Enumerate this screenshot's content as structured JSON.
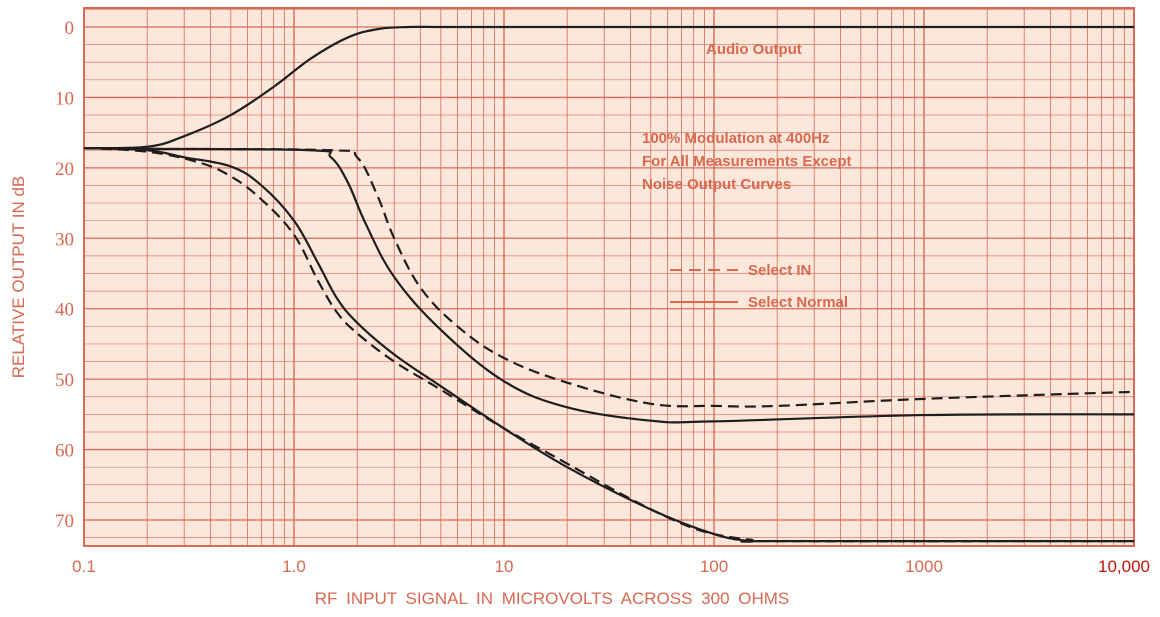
{
  "chart_data": {
    "type": "line",
    "x_scale": "log",
    "xlim": [
      0.1,
      10000
    ],
    "ylim": [
      0,
      73
    ],
    "y_inverted": true,
    "grid": true,
    "x_ticks": [
      {
        "value": 0.1,
        "label": "0.1"
      },
      {
        "value": 1,
        "label": "1.0"
      },
      {
        "value": 10,
        "label": "10"
      },
      {
        "value": 100,
        "label": "100"
      },
      {
        "value": 1000,
        "label": "1000"
      },
      {
        "value": 10000,
        "label": "10,000"
      }
    ],
    "y_ticks": [
      {
        "value": 0,
        "label": "0"
      },
      {
        "value": 10,
        "label": "10"
      },
      {
        "value": 20,
        "label": "20"
      },
      {
        "value": 30,
        "label": "30"
      },
      {
        "value": 40,
        "label": "40"
      },
      {
        "value": 50,
        "label": "50"
      },
      {
        "value": 60,
        "label": "60"
      },
      {
        "value": 70,
        "label": "70"
      }
    ],
    "xlabel": "RF INPUT SIGNAL IN MICROVOLTS ACROSS 300 OHMS",
    "ylabel": "RELATIVE OUTPUT IN dB",
    "annotations": [
      "Audio Output",
      "100% Modulation at 400Hz",
      "For All Measurements Except",
      "Noise Output Curves"
    ],
    "legend": {
      "placement": "right-middle",
      "entries": [
        {
          "label": "Select IN",
          "style": "dashed"
        },
        {
          "label": "Select Normal",
          "style": "solid"
        }
      ]
    },
    "series": [
      {
        "style": "solid",
        "x": [
          0.1,
          0.2,
          0.3,
          0.5,
          0.8,
          1.2,
          1.8,
          2.5,
          3.5,
          5,
          10,
          100,
          1000,
          10000
        ],
        "y": [
          17.2,
          17,
          15.5,
          12.5,
          8.5,
          4.5,
          1.5,
          0.3,
          0,
          0,
          0,
          0,
          0,
          0
        ]
      },
      {
        "style": "dashed",
        "x": [
          0.1,
          0.2,
          1.5,
          2,
          2.5,
          3,
          4,
          6,
          10,
          20,
          50,
          100,
          200,
          1000,
          10000
        ],
        "y": [
          17.2,
          17.3,
          17.5,
          18.5,
          24,
          30,
          37,
          42.5,
          47,
          50.5,
          53.5,
          53.8,
          53.8,
          52.8,
          51.8
        ]
      },
      {
        "style": "solid",
        "x": [
          0.1,
          0.2,
          1.2,
          1.5,
          1.8,
          2.2,
          3,
          5,
          10,
          20,
          50,
          100,
          1000,
          10000
        ],
        "y": [
          17.2,
          17.3,
          17.5,
          18.5,
          22,
          28,
          35.5,
          43,
          50.3,
          54,
          55.9,
          56,
          55.1,
          55
        ]
      },
      {
        "style": "dashed",
        "x": [
          0.1,
          0.2,
          0.35,
          0.5,
          0.7,
          1,
          1.3,
          1.6,
          2,
          3,
          5,
          10,
          20,
          40,
          70,
          100,
          150,
          200,
          10000
        ],
        "y": [
          17.2,
          17.7,
          19.2,
          21.2,
          24.5,
          29.5,
          36,
          40.5,
          43.5,
          47.5,
          51.5,
          57,
          62,
          67,
          70.5,
          72,
          72.8,
          73,
          73
        ]
      },
      {
        "style": "solid",
        "x": [
          0.1,
          0.2,
          0.3,
          0.5,
          0.7,
          1,
          1.3,
          1.6,
          2,
          3,
          5,
          10,
          20,
          50,
          100,
          150,
          200,
          10000
        ],
        "y": [
          17.2,
          17.5,
          18.5,
          19.8,
          22.5,
          27.5,
          33.5,
          38.5,
          42,
          46.5,
          51,
          57,
          62.5,
          68.5,
          72,
          73,
          73,
          73
        ]
      }
    ],
    "colors": {
      "background": "#fce8da",
      "grid": "#d86a5a",
      "text": "#d86850",
      "curve": "#1e1e1e"
    }
  }
}
